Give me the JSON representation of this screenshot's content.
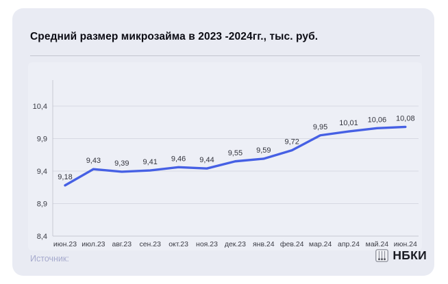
{
  "title": "Средний размер микрозайма в 2023 -2024гг., тыс. руб.",
  "footer": {
    "source_label": "Источник:",
    "logo_text": "НБКИ"
  },
  "colors": {
    "line": "#4660e4",
    "grid": "#d7d9e2",
    "axis": "#c6c8d3",
    "tick_text": "#393a43",
    "data_label_text": "#32333c",
    "card_bg": "#e9ebf3",
    "plot_bg": "#edeff6"
  },
  "chart_data": {
    "type": "line",
    "title": "Средний размер микрозайма в 2023 -2024гг., тыс. руб.",
    "categories": [
      "июн.23",
      "июл.23",
      "авг.23",
      "сен.23",
      "окт.23",
      "ноя.23",
      "дек.23",
      "янв.24",
      "фев.24",
      "мар.24",
      "апр.24",
      "май.24",
      "июн.24"
    ],
    "values": [
      9.18,
      9.43,
      9.39,
      9.41,
      9.46,
      9.44,
      9.55,
      9.59,
      9.72,
      9.95,
      10.01,
      10.06,
      10.08
    ],
    "point_labels": [
      "9,18",
      "9,43",
      "9,39",
      "9,41",
      "9,46",
      "9,44",
      "9,55",
      "9,59",
      "9,72",
      "9,95",
      "10,01",
      "10,06",
      "10,08"
    ],
    "xlabel": "",
    "ylabel": "",
    "y_ticks": [
      {
        "value": 10.4,
        "label": "10,4"
      },
      {
        "value": 9.9,
        "label": "9,9"
      },
      {
        "value": 9.4,
        "label": "9,4"
      },
      {
        "value": 8.9,
        "label": "8,9"
      },
      {
        "value": 8.4,
        "label": "8,4"
      }
    ],
    "ylim": [
      8.4,
      10.8
    ],
    "grid": true,
    "legend": "none"
  }
}
